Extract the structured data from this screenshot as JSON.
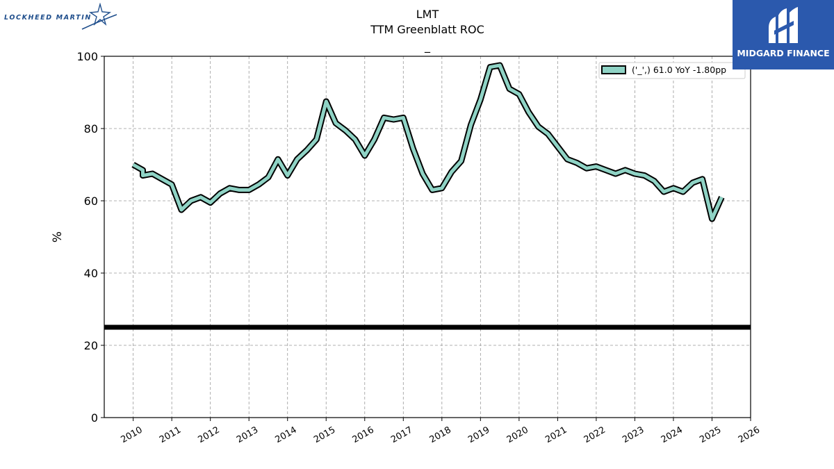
{
  "logos": {
    "left": {
      "text": "LOCKHEED MARTIN",
      "icon": "star-swoosh-icon",
      "color": "#1f4e8c"
    },
    "right": {
      "text": "MIDGARD FINANCE",
      "icon": "midgard-m-icon",
      "color": "#2b59ad"
    }
  },
  "chart_data": {
    "type": "line",
    "title": "LMT",
    "subtitle": "TTM Greenblatt ROC",
    "subtitle2": "_",
    "xlabel": "",
    "ylabel": "%",
    "xlim": [
      2009.25,
      2026.0
    ],
    "ylim": [
      0,
      100
    ],
    "x_ticks": [
      "2010",
      "2011",
      "2012",
      "2013",
      "2014",
      "2015",
      "2016",
      "2017",
      "2018",
      "2019",
      "2020",
      "2021",
      "2022",
      "2023",
      "2024",
      "2025",
      "2026"
    ],
    "y_ticks": [
      "0",
      "20",
      "40",
      "60",
      "80",
      "100"
    ],
    "grid": true,
    "legend_position": "top-right",
    "reference_line": {
      "y": 25,
      "color": "#000000"
    },
    "series": [
      {
        "name": "('_',) 61.0 YoY -1.80pp",
        "color": "#8fd3c5",
        "edge_color": "#000000",
        "x": [
          2010.0,
          2010.25,
          2010.25,
          2010.5,
          2010.75,
          2011.0,
          2011.25,
          2011.5,
          2011.75,
          2012.0,
          2012.25,
          2012.5,
          2012.75,
          2013.0,
          2013.25,
          2013.5,
          2013.75,
          2014.0,
          2014.25,
          2014.5,
          2014.75,
          2015.0,
          2015.25,
          2015.5,
          2015.75,
          2016.0,
          2016.25,
          2016.5,
          2016.75,
          2017.0,
          2017.25,
          2017.5,
          2017.75,
          2018.0,
          2018.25,
          2018.5,
          2018.75,
          2019.0,
          2019.25,
          2019.5,
          2019.75,
          2020.0,
          2020.25,
          2020.5,
          2020.75,
          2021.0,
          2021.25,
          2021.5,
          2021.75,
          2022.0,
          2022.25,
          2022.5,
          2022.75,
          2023.0,
          2023.25,
          2023.5,
          2023.75,
          2024.0,
          2024.25,
          2024.5,
          2024.75,
          2025.0,
          2025.25
        ],
        "y": [
          70.0,
          68.5,
          67.0,
          67.5,
          66.0,
          64.5,
          57.5,
          60.0,
          61.0,
          59.5,
          62.0,
          63.5,
          63.0,
          63.0,
          64.5,
          66.5,
          71.5,
          67.0,
          71.5,
          74.0,
          77.0,
          87.5,
          81.5,
          79.5,
          77.0,
          72.5,
          77.0,
          83.0,
          82.5,
          83.0,
          74.5,
          67.5,
          63.0,
          63.5,
          68.0,
          71.0,
          81.0,
          88.0,
          97.0,
          97.5,
          91.0,
          89.5,
          84.5,
          80.5,
          78.5,
          75.0,
          71.5,
          70.5,
          69.0,
          69.5,
          68.5,
          67.5,
          68.5,
          67.5,
          67.0,
          65.5,
          62.5,
          63.5,
          62.5,
          65.0,
          66.0,
          55.0,
          61.0
        ]
      }
    ]
  }
}
